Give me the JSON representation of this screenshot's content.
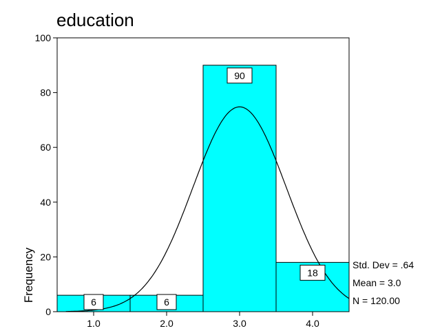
{
  "chart_data": {
    "type": "bar",
    "title": "education",
    "xlabel": "",
    "ylabel": "Frequency",
    "categories": [
      "1.0",
      "2.0",
      "3.0",
      "4.0"
    ],
    "values": [
      6,
      6,
      90,
      18
    ],
    "data_labels": [
      "6",
      "6",
      "90",
      "18"
    ],
    "xlim": [
      0.5,
      4.5
    ],
    "ylim": [
      0,
      100
    ],
    "yticks": [
      "0",
      "20",
      "40",
      "60",
      "80",
      "100"
    ],
    "normal_curve": {
      "mean": 3.0,
      "std_dev": 0.64,
      "n": 120
    },
    "stats": {
      "std_dev": "Std. Dev = .64",
      "mean": "Mean = 3.0",
      "n": "N = 120.00"
    },
    "bar_color": "#00ffff",
    "grid": false
  }
}
